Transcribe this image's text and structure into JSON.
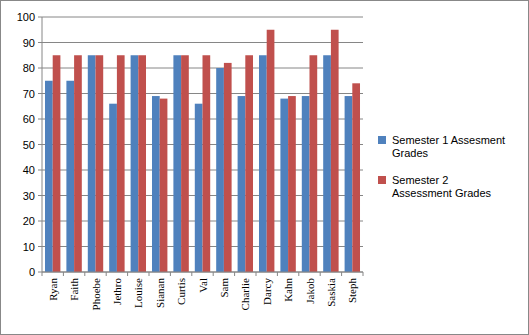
{
  "chart_data": {
    "type": "bar",
    "categories": [
      "Ryan",
      "Faith",
      "Phoebe",
      "Jethro",
      "Louise",
      "Sianan",
      "Curtis",
      "Val",
      "Sam",
      "Charlie",
      "Darcy",
      "Kahn",
      "Jakob",
      "Saskia",
      "Steph"
    ],
    "series": [
      {
        "name": "Semester 1 Assesment Grades",
        "color": "#4f81bd",
        "values": [
          75,
          75,
          85,
          66,
          85,
          69,
          85,
          66,
          80,
          69,
          85,
          68,
          69,
          85,
          69
        ]
      },
      {
        "name": "Semester 2 Assessment Grades",
        "color": "#c0504d",
        "values": [
          85,
          85,
          85,
          85,
          85,
          68,
          85,
          85,
          82,
          85,
          95,
          69,
          85,
          95,
          74
        ]
      }
    ],
    "ylim": [
      0,
      100
    ],
    "yticks": [
      0,
      10,
      20,
      30,
      40,
      50,
      60,
      70,
      80,
      90,
      100
    ],
    "grid": true,
    "legend": "right"
  }
}
